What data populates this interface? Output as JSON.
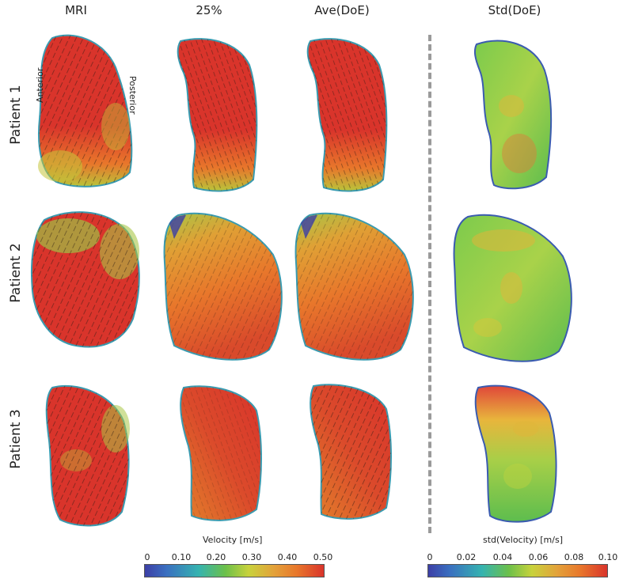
{
  "columns": [
    "MRI",
    "25%",
    "Ave(DoE)",
    "Std(DoE)"
  ],
  "rows": [
    "Patient 1",
    "Patient  2",
    "Patient  3"
  ],
  "annotations": {
    "anterior": "Anterior",
    "posterior": "Posterior"
  },
  "colorbar_velocity": {
    "title": "Velocity [m/s]",
    "ticks": [
      "0",
      "0.10",
      "0.20",
      "0.30",
      "0.40",
      "0.50"
    ]
  },
  "colorbar_std": {
    "title": "std(Velocity)  [m/s]",
    "ticks": [
      "0",
      "0.02",
      "0.04",
      "0.06",
      "0.08",
      "0.10"
    ]
  },
  "colors": {
    "red": "#d9342b",
    "orange": "#e8772b",
    "yellow": "#e3d23a",
    "green": "#6cc04a",
    "cyan": "#35b3b0",
    "blue": "#3c3fa6",
    "divider": "#9a9a9a"
  }
}
